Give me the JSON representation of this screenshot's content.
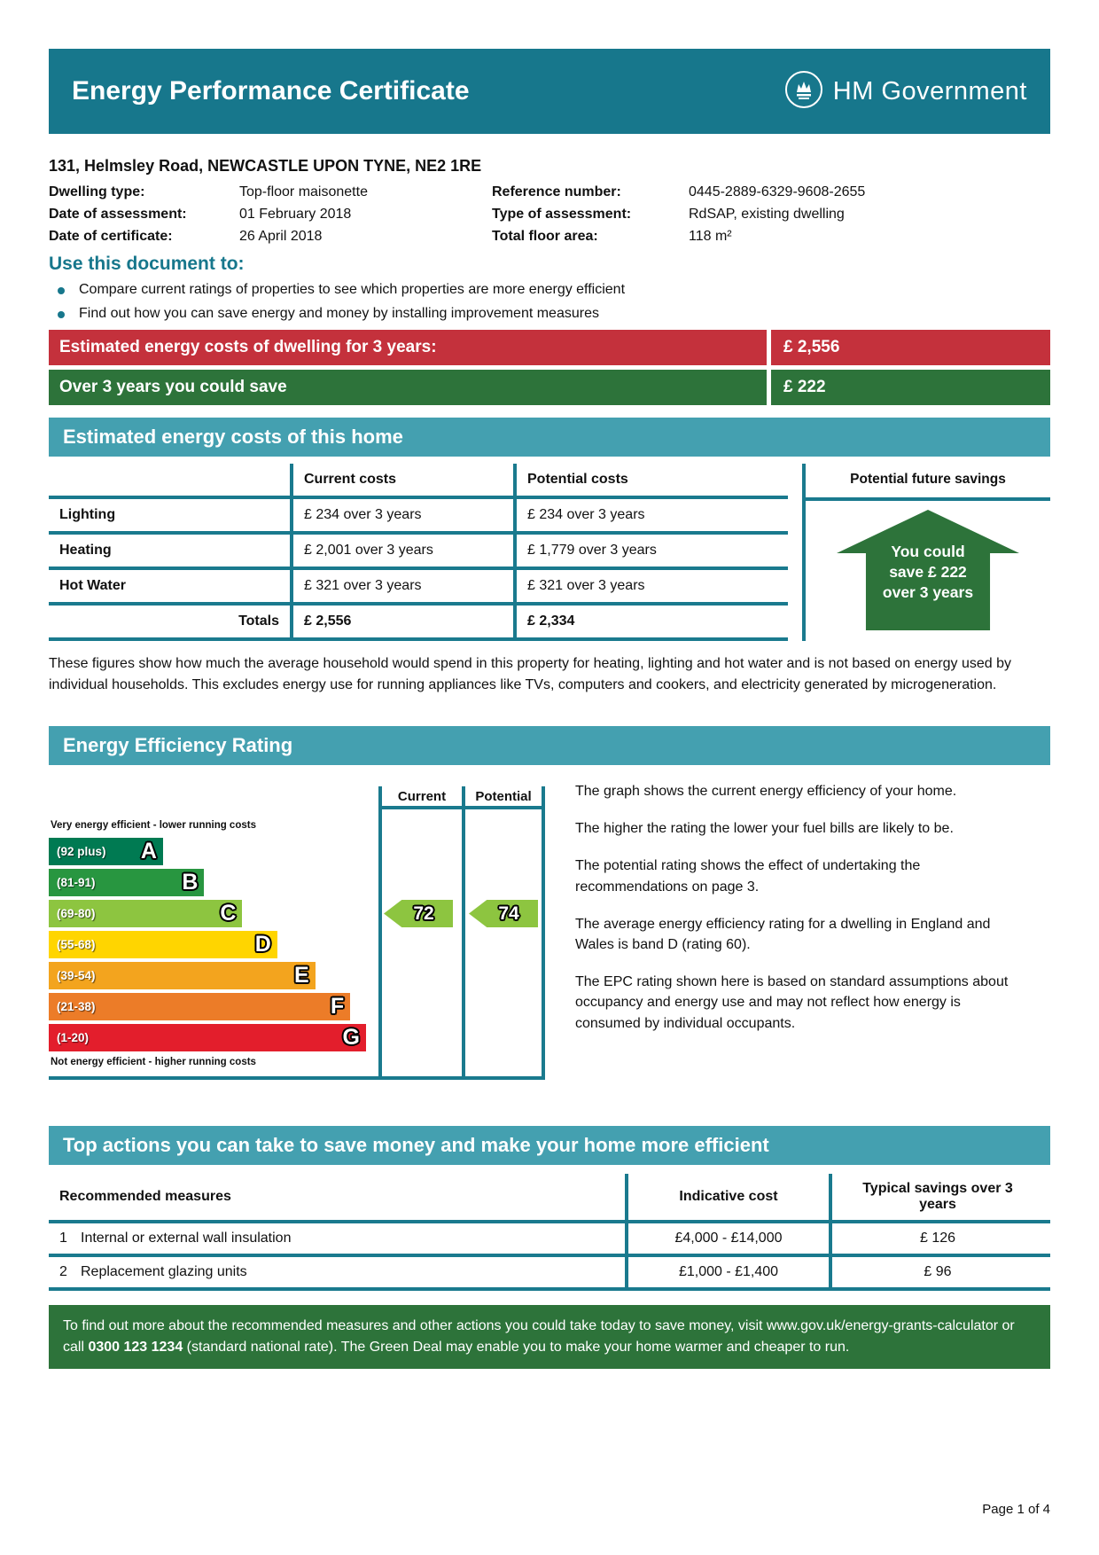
{
  "page": {
    "number_label": "Page 1 of 4"
  },
  "colors": {
    "header_teal": "#17778C",
    "section_teal": "#44A0B0",
    "border_teal": "#1A7A8E",
    "red_bar": "#C4313C",
    "green": "#2D733A"
  },
  "header": {
    "title": "Energy Performance Certificate",
    "logo_text": "HM Government"
  },
  "property": {
    "address": "131, Helmsley Road, NEWCASTLE UPON TYNE, NE2 1RE",
    "details_left": [
      {
        "label": "Dwelling type:",
        "value": "Top-floor maisonette"
      },
      {
        "label": "Date of assessment:",
        "value": "01 February 2018"
      },
      {
        "label": "Date of certificate:",
        "value": "26 April 2018"
      }
    ],
    "details_right": [
      {
        "label": "Reference number:",
        "value": "0445-2889-6329-9608-2655"
      },
      {
        "label": "Type of assessment:",
        "value": "RdSAP, existing dwelling"
      },
      {
        "label": "Total floor area:",
        "value": "118 m²"
      }
    ]
  },
  "use_document": {
    "heading": "Use this document to:",
    "bullets": [
      "Compare current ratings of properties to see which properties are more energy efficient",
      "Find out how you can save energy and money by installing improvement measures"
    ]
  },
  "summary_bars": {
    "costs": {
      "label": "Estimated energy costs of dwelling for 3 years:",
      "value": "£ 2,556"
    },
    "savings": {
      "label": "Over 3 years you could save",
      "value": "£ 222"
    }
  },
  "costs_section": {
    "heading": "Estimated energy costs of this home",
    "col_current": "Current costs",
    "col_potential": "Potential costs",
    "col_savings": "Potential future savings",
    "rows": [
      {
        "name": "Lighting",
        "current": "£ 234 over 3 years",
        "potential": "£ 234 over 3 years"
      },
      {
        "name": "Heating",
        "current": "£ 2,001 over 3 years",
        "potential": "£ 1,779 over 3 years"
      },
      {
        "name": "Hot Water",
        "current": "£ 321 over 3 years",
        "potential": "£ 321 over 3 years"
      }
    ],
    "totals": {
      "name": "Totals",
      "current": "£ 2,556",
      "potential": "£ 2,334"
    },
    "savings_arrow_lines": [
      "You could",
      "save £ 222",
      "over 3 years"
    ],
    "footnote": "These figures show how much the average household would spend in this property for heating, lighting and hot water and is not based on energy used by individual households. This excludes energy use for running appliances like TVs, computers and cookers, and electricity generated by microgeneration."
  },
  "rating_section": {
    "heading": "Energy Efficiency Rating",
    "col_current": "Current",
    "col_potential": "Potential",
    "top_label": "Very energy efficient - lower running costs",
    "bottom_label": "Not energy efficient - higher running costs",
    "chart_data": {
      "type": "epc-rating-bands",
      "bands": [
        {
          "letter": "A",
          "range": "(92 plus)",
          "color": "#007A52",
          "width_pct": 36
        },
        {
          "letter": "B",
          "range": "(81-91)",
          "color": "#289640",
          "width_pct": 49
        },
        {
          "letter": "C",
          "range": "(69-80)",
          "color": "#8DC540",
          "width_pct": 61
        },
        {
          "letter": "D",
          "range": "(55-68)",
          "color": "#FFD500",
          "width_pct": 72
        },
        {
          "letter": "E",
          "range": "(39-54)",
          "color": "#F3A41E",
          "width_pct": 84
        },
        {
          "letter": "F",
          "range": "(21-38)",
          "color": "#EC7C28",
          "width_pct": 95
        },
        {
          "letter": "G",
          "range": "(1-20)",
          "color": "#E31E2C",
          "width_pct": 100
        }
      ],
      "current": {
        "value": 72,
        "band": "C",
        "color": "#8DC540"
      },
      "potential": {
        "value": 74,
        "band": "C",
        "color": "#8DC540"
      }
    },
    "paragraphs": [
      "The graph shows the current energy efficiency of your home.",
      "The higher the rating the lower your fuel bills are likely to be.",
      "The potential rating shows the effect of undertaking the recommendations on page 3.",
      "The average energy efficiency rating for a dwelling in England and Wales is band D (rating 60).",
      "The EPC rating shown here is based on standard assumptions about occupancy and energy use and may not reflect how energy is consumed by individual occupants."
    ]
  },
  "actions_section": {
    "heading": "Top actions you can take to save money and make your home more efficient",
    "col_measures": "Recommended measures",
    "col_cost": "Indicative cost",
    "col_savings": "Typical savings over 3 years",
    "rows": [
      {
        "num": "1",
        "measure": "Internal or external wall insulation",
        "cost": "£4,000 - £14,000",
        "savings": "£ 126"
      },
      {
        "num": "2",
        "measure": "Replacement glazing units",
        "cost": "£1,000 - £1,400",
        "savings": "£ 96"
      }
    ],
    "footer_note": {
      "pre": "To find out more about the recommended measures and other actions you could take today to save money, visit www.gov.uk/energy-grants-calculator or call ",
      "phone": "0300 123 1234",
      "post": " (standard national rate). The Green Deal may enable you to make your home warmer and cheaper to run."
    }
  }
}
